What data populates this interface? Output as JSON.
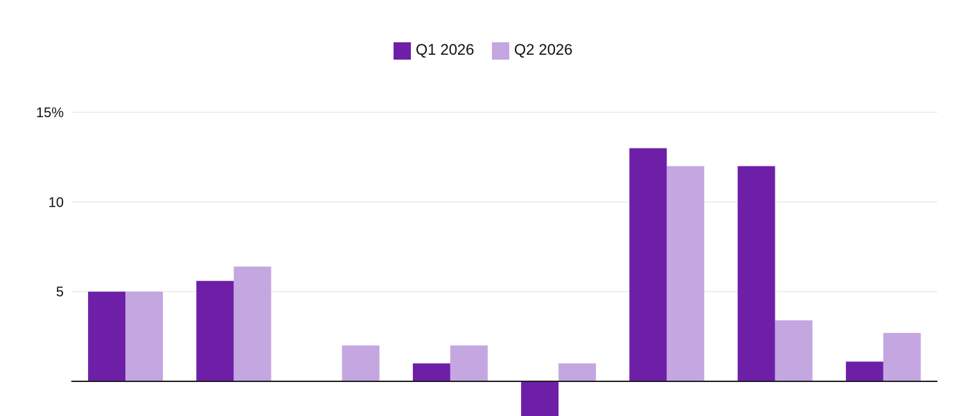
{
  "chart_data": {
    "type": "bar",
    "title": "",
    "xlabel": "",
    "ylabel": "",
    "categories": [
      "",
      "",
      "",
      "",
      "",
      "",
      "",
      ""
    ],
    "series": [
      {
        "name": "Q1 2026",
        "color": "#6d1fa8",
        "values": [
          5.0,
          5.6,
          0.0,
          1.0,
          -2.0,
          13.0,
          12.0,
          1.1
        ]
      },
      {
        "name": "Q2 2026",
        "color": "#c4a6e0",
        "values": [
          5.0,
          6.4,
          2.0,
          2.0,
          1.0,
          12.0,
          3.4,
          2.7
        ]
      }
    ],
    "ylim": [
      -2,
      15
    ],
    "yticks": [
      {
        "value": 5,
        "label": "5"
      },
      {
        "value": 10,
        "label": "10"
      },
      {
        "value": 15,
        "label": "15%"
      }
    ],
    "grid": true,
    "legend_position": "top-center"
  }
}
